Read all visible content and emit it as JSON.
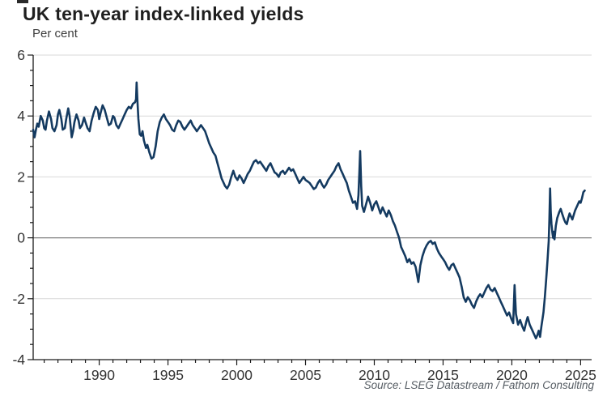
{
  "header": {
    "title": "UK ten-year index-linked yields",
    "subtitle": "Per cent"
  },
  "footer": {
    "source": "Source: LSEG Datastream / Fathom Consulting"
  },
  "chart_data": {
    "type": "line",
    "title": "UK ten-year index-linked yields",
    "ylabel": "Per cent",
    "source": "Source: LSEG Datastream / Fathom Consulting",
    "xlim": [
      1985.2,
      2025.8
    ],
    "ylim": [
      -4,
      6
    ],
    "x_major_ticks": [
      1990,
      1995,
      2000,
      2005,
      2010,
      2015,
      2020,
      2025
    ],
    "x_major_labels": [
      "1990",
      "1995",
      "2000",
      "2005",
      "2010",
      "2015",
      "2020",
      "2025"
    ],
    "x_minor_start": 1986,
    "x_minor_end": 2025,
    "x_minor_step": 1,
    "y_major_ticks": [
      -4,
      -2,
      0,
      2,
      4,
      6
    ],
    "y_major_labels": [
      "-4",
      "-2",
      "0",
      "2",
      "4",
      "6"
    ],
    "y_minor_step": 0.5,
    "grid_light_values": [
      6,
      4,
      2,
      -2
    ],
    "grid_zero_values": [
      0
    ],
    "legend": "none",
    "colors": {
      "line": "#143a60",
      "grid_light": "#d9d9d9",
      "grid_zero": "#7f7f7f",
      "axis": "#1a1a1a",
      "tick_text": "#333333"
    },
    "series": [
      {
        "name": "UK ten-year index-linked yield",
        "points": [
          [
            1985.2,
            3.55
          ],
          [
            1985.3,
            3.3
          ],
          [
            1985.4,
            3.55
          ],
          [
            1985.5,
            3.75
          ],
          [
            1985.6,
            3.65
          ],
          [
            1985.75,
            4.0
          ],
          [
            1985.9,
            3.85
          ],
          [
            1986.0,
            3.6
          ],
          [
            1986.1,
            3.55
          ],
          [
            1986.2,
            3.85
          ],
          [
            1986.35,
            4.15
          ],
          [
            1986.5,
            3.9
          ],
          [
            1986.6,
            3.6
          ],
          [
            1986.75,
            3.5
          ],
          [
            1986.9,
            3.7
          ],
          [
            1987.0,
            4.05
          ],
          [
            1987.1,
            4.2
          ],
          [
            1987.25,
            3.9
          ],
          [
            1987.35,
            3.55
          ],
          [
            1987.5,
            3.6
          ],
          [
            1987.6,
            3.9
          ],
          [
            1987.75,
            4.25
          ],
          [
            1987.85,
            4.0
          ],
          [
            1988.0,
            3.3
          ],
          [
            1988.1,
            3.5
          ],
          [
            1988.2,
            3.8
          ],
          [
            1988.35,
            4.05
          ],
          [
            1988.5,
            3.85
          ],
          [
            1988.6,
            3.6
          ],
          [
            1988.75,
            3.7
          ],
          [
            1988.9,
            3.95
          ],
          [
            1989.0,
            3.8
          ],
          [
            1989.15,
            3.6
          ],
          [
            1989.3,
            3.5
          ],
          [
            1989.45,
            3.85
          ],
          [
            1989.6,
            4.1
          ],
          [
            1989.75,
            4.3
          ],
          [
            1989.9,
            4.2
          ],
          [
            1990.0,
            3.9
          ],
          [
            1990.1,
            4.1
          ],
          [
            1990.25,
            4.35
          ],
          [
            1990.4,
            4.2
          ],
          [
            1990.55,
            3.95
          ],
          [
            1990.7,
            3.7
          ],
          [
            1990.85,
            3.75
          ],
          [
            1991.0,
            4.0
          ],
          [
            1991.1,
            3.95
          ],
          [
            1991.25,
            3.7
          ],
          [
            1991.4,
            3.6
          ],
          [
            1991.55,
            3.75
          ],
          [
            1991.7,
            3.9
          ],
          [
            1991.85,
            4.05
          ],
          [
            1992.0,
            4.2
          ],
          [
            1992.15,
            4.3
          ],
          [
            1992.3,
            4.25
          ],
          [
            1992.45,
            4.4
          ],
          [
            1992.6,
            4.45
          ],
          [
            1992.68,
            4.55
          ],
          [
            1992.72,
            5.1
          ],
          [
            1992.78,
            4.5
          ],
          [
            1992.85,
            3.9
          ],
          [
            1992.95,
            3.4
          ],
          [
            1993.05,
            3.35
          ],
          [
            1993.15,
            3.5
          ],
          [
            1993.25,
            3.2
          ],
          [
            1993.4,
            2.95
          ],
          [
            1993.5,
            3.05
          ],
          [
            1993.65,
            2.8
          ],
          [
            1993.8,
            2.6
          ],
          [
            1993.95,
            2.65
          ],
          [
            1994.1,
            3.0
          ],
          [
            1994.25,
            3.5
          ],
          [
            1994.4,
            3.8
          ],
          [
            1994.55,
            3.95
          ],
          [
            1994.7,
            4.05
          ],
          [
            1994.85,
            3.9
          ],
          [
            1995.0,
            3.8
          ],
          [
            1995.15,
            3.7
          ],
          [
            1995.3,
            3.55
          ],
          [
            1995.45,
            3.5
          ],
          [
            1995.6,
            3.7
          ],
          [
            1995.75,
            3.85
          ],
          [
            1995.9,
            3.8
          ],
          [
            1996.05,
            3.65
          ],
          [
            1996.2,
            3.55
          ],
          [
            1996.35,
            3.65
          ],
          [
            1996.5,
            3.75
          ],
          [
            1996.65,
            3.85
          ],
          [
            1996.8,
            3.7
          ],
          [
            1996.95,
            3.6
          ],
          [
            1997.1,
            3.5
          ],
          [
            1997.25,
            3.6
          ],
          [
            1997.4,
            3.7
          ],
          [
            1997.55,
            3.6
          ],
          [
            1997.7,
            3.5
          ],
          [
            1997.85,
            3.3
          ],
          [
            1998.0,
            3.1
          ],
          [
            1998.15,
            2.95
          ],
          [
            1998.3,
            2.8
          ],
          [
            1998.45,
            2.7
          ],
          [
            1998.6,
            2.45
          ],
          [
            1998.75,
            2.2
          ],
          [
            1998.9,
            1.95
          ],
          [
            1999.0,
            1.85
          ],
          [
            1999.15,
            1.7
          ],
          [
            1999.3,
            1.62
          ],
          [
            1999.45,
            1.75
          ],
          [
            1999.6,
            2.0
          ],
          [
            1999.75,
            2.2
          ],
          [
            1999.9,
            2.0
          ],
          [
            2000.05,
            1.9
          ],
          [
            2000.2,
            2.05
          ],
          [
            2000.35,
            1.95
          ],
          [
            2000.5,
            1.8
          ],
          [
            2000.65,
            1.95
          ],
          [
            2000.8,
            2.1
          ],
          [
            2000.95,
            2.2
          ],
          [
            2001.1,
            2.35
          ],
          [
            2001.25,
            2.5
          ],
          [
            2001.4,
            2.55
          ],
          [
            2001.55,
            2.45
          ],
          [
            2001.7,
            2.5
          ],
          [
            2001.85,
            2.4
          ],
          [
            2002.0,
            2.3
          ],
          [
            2002.15,
            2.2
          ],
          [
            2002.3,
            2.35
          ],
          [
            2002.45,
            2.45
          ],
          [
            2002.6,
            2.3
          ],
          [
            2002.75,
            2.15
          ],
          [
            2002.9,
            2.1
          ],
          [
            2003.05,
            2.0
          ],
          [
            2003.2,
            2.15
          ],
          [
            2003.35,
            2.2
          ],
          [
            2003.5,
            2.1
          ],
          [
            2003.65,
            2.2
          ],
          [
            2003.8,
            2.3
          ],
          [
            2003.95,
            2.2
          ],
          [
            2004.1,
            2.25
          ],
          [
            2004.25,
            2.1
          ],
          [
            2004.4,
            1.95
          ],
          [
            2004.55,
            1.8
          ],
          [
            2004.7,
            1.9
          ],
          [
            2004.85,
            2.0
          ],
          [
            2005.0,
            1.9
          ],
          [
            2005.15,
            1.85
          ],
          [
            2005.3,
            1.8
          ],
          [
            2005.45,
            1.7
          ],
          [
            2005.6,
            1.6
          ],
          [
            2005.75,
            1.65
          ],
          [
            2005.9,
            1.8
          ],
          [
            2006.05,
            1.9
          ],
          [
            2006.2,
            1.75
          ],
          [
            2006.35,
            1.65
          ],
          [
            2006.5,
            1.75
          ],
          [
            2006.65,
            1.9
          ],
          [
            2006.8,
            2.0
          ],
          [
            2006.95,
            2.1
          ],
          [
            2007.1,
            2.2
          ],
          [
            2007.25,
            2.35
          ],
          [
            2007.4,
            2.45
          ],
          [
            2007.55,
            2.25
          ],
          [
            2007.7,
            2.1
          ],
          [
            2007.85,
            1.95
          ],
          [
            2008.0,
            1.8
          ],
          [
            2008.15,
            1.55
          ],
          [
            2008.3,
            1.35
          ],
          [
            2008.45,
            1.15
          ],
          [
            2008.6,
            1.2
          ],
          [
            2008.75,
            0.95
          ],
          [
            2008.85,
            1.4
          ],
          [
            2008.92,
            2.2
          ],
          [
            2008.97,
            2.85
          ],
          [
            2009.05,
            1.7
          ],
          [
            2009.12,
            1.05
          ],
          [
            2009.25,
            0.85
          ],
          [
            2009.4,
            1.1
          ],
          [
            2009.55,
            1.35
          ],
          [
            2009.7,
            1.15
          ],
          [
            2009.85,
            0.9
          ],
          [
            2010.0,
            1.1
          ],
          [
            2010.15,
            1.2
          ],
          [
            2010.3,
            1.0
          ],
          [
            2010.45,
            0.8
          ],
          [
            2010.6,
            1.0
          ],
          [
            2010.75,
            0.85
          ],
          [
            2010.9,
            0.7
          ],
          [
            2011.05,
            0.9
          ],
          [
            2011.2,
            0.75
          ],
          [
            2011.35,
            0.55
          ],
          [
            2011.5,
            0.4
          ],
          [
            2011.65,
            0.2
          ],
          [
            2011.8,
            0.0
          ],
          [
            2011.95,
            -0.3
          ],
          [
            2012.1,
            -0.45
          ],
          [
            2012.25,
            -0.6
          ],
          [
            2012.4,
            -0.8
          ],
          [
            2012.55,
            -0.7
          ],
          [
            2012.7,
            -0.85
          ],
          [
            2012.85,
            -0.8
          ],
          [
            2013.0,
            -0.95
          ],
          [
            2013.1,
            -1.2
          ],
          [
            2013.2,
            -1.45
          ],
          [
            2013.35,
            -0.9
          ],
          [
            2013.5,
            -0.6
          ],
          [
            2013.65,
            -0.4
          ],
          [
            2013.8,
            -0.25
          ],
          [
            2013.95,
            -0.15
          ],
          [
            2014.1,
            -0.1
          ],
          [
            2014.25,
            -0.2
          ],
          [
            2014.4,
            -0.15
          ],
          [
            2014.55,
            -0.35
          ],
          [
            2014.7,
            -0.5
          ],
          [
            2014.85,
            -0.6
          ],
          [
            2015.0,
            -0.7
          ],
          [
            2015.15,
            -0.8
          ],
          [
            2015.3,
            -0.95
          ],
          [
            2015.45,
            -1.05
          ],
          [
            2015.6,
            -0.9
          ],
          [
            2015.75,
            -0.85
          ],
          [
            2015.9,
            -1.0
          ],
          [
            2016.05,
            -1.15
          ],
          [
            2016.2,
            -1.3
          ],
          [
            2016.35,
            -1.6
          ],
          [
            2016.5,
            -1.95
          ],
          [
            2016.65,
            -2.1
          ],
          [
            2016.8,
            -1.95
          ],
          [
            2016.95,
            -2.05
          ],
          [
            2017.1,
            -2.2
          ],
          [
            2017.25,
            -2.3
          ],
          [
            2017.4,
            -2.1
          ],
          [
            2017.55,
            -1.95
          ],
          [
            2017.7,
            -1.85
          ],
          [
            2017.85,
            -1.95
          ],
          [
            2018.0,
            -1.8
          ],
          [
            2018.15,
            -1.65
          ],
          [
            2018.3,
            -1.55
          ],
          [
            2018.45,
            -1.7
          ],
          [
            2018.6,
            -1.75
          ],
          [
            2018.75,
            -1.65
          ],
          [
            2018.9,
            -1.8
          ],
          [
            2019.05,
            -1.95
          ],
          [
            2019.2,
            -2.1
          ],
          [
            2019.35,
            -2.25
          ],
          [
            2019.5,
            -2.4
          ],
          [
            2019.65,
            -2.55
          ],
          [
            2019.8,
            -2.45
          ],
          [
            2019.95,
            -2.65
          ],
          [
            2020.1,
            -2.8
          ],
          [
            2020.2,
            -1.55
          ],
          [
            2020.3,
            -2.5
          ],
          [
            2020.45,
            -2.85
          ],
          [
            2020.6,
            -2.7
          ],
          [
            2020.75,
            -2.9
          ],
          [
            2020.9,
            -3.05
          ],
          [
            2021.05,
            -2.75
          ],
          [
            2021.15,
            -2.6
          ],
          [
            2021.3,
            -2.85
          ],
          [
            2021.45,
            -3.0
          ],
          [
            2021.6,
            -3.15
          ],
          [
            2021.75,
            -3.3
          ],
          [
            2021.85,
            -3.2
          ],
          [
            2021.95,
            -3.05
          ],
          [
            2022.05,
            -3.25
          ],
          [
            2022.15,
            -2.9
          ],
          [
            2022.3,
            -2.45
          ],
          [
            2022.4,
            -1.95
          ],
          [
            2022.5,
            -1.35
          ],
          [
            2022.6,
            -0.7
          ],
          [
            2022.68,
            -0.1
          ],
          [
            2022.73,
            0.6
          ],
          [
            2022.78,
            1.62
          ],
          [
            2022.83,
            0.85
          ],
          [
            2022.88,
            0.45
          ],
          [
            2022.95,
            0.15
          ],
          [
            2023.0,
            0.0
          ],
          [
            2023.05,
            0.2
          ],
          [
            2023.1,
            -0.05
          ],
          [
            2023.2,
            0.4
          ],
          [
            2023.3,
            0.65
          ],
          [
            2023.45,
            0.85
          ],
          [
            2023.55,
            0.95
          ],
          [
            2023.65,
            0.8
          ],
          [
            2023.8,
            0.6
          ],
          [
            2023.9,
            0.5
          ],
          [
            2024.0,
            0.45
          ],
          [
            2024.1,
            0.65
          ],
          [
            2024.2,
            0.8
          ],
          [
            2024.3,
            0.7
          ],
          [
            2024.4,
            0.6
          ],
          [
            2024.5,
            0.75
          ],
          [
            2024.6,
            0.9
          ],
          [
            2024.75,
            1.05
          ],
          [
            2024.9,
            1.2
          ],
          [
            2025.0,
            1.15
          ],
          [
            2025.1,
            1.3
          ],
          [
            2025.2,
            1.5
          ],
          [
            2025.3,
            1.55
          ]
        ]
      }
    ]
  }
}
